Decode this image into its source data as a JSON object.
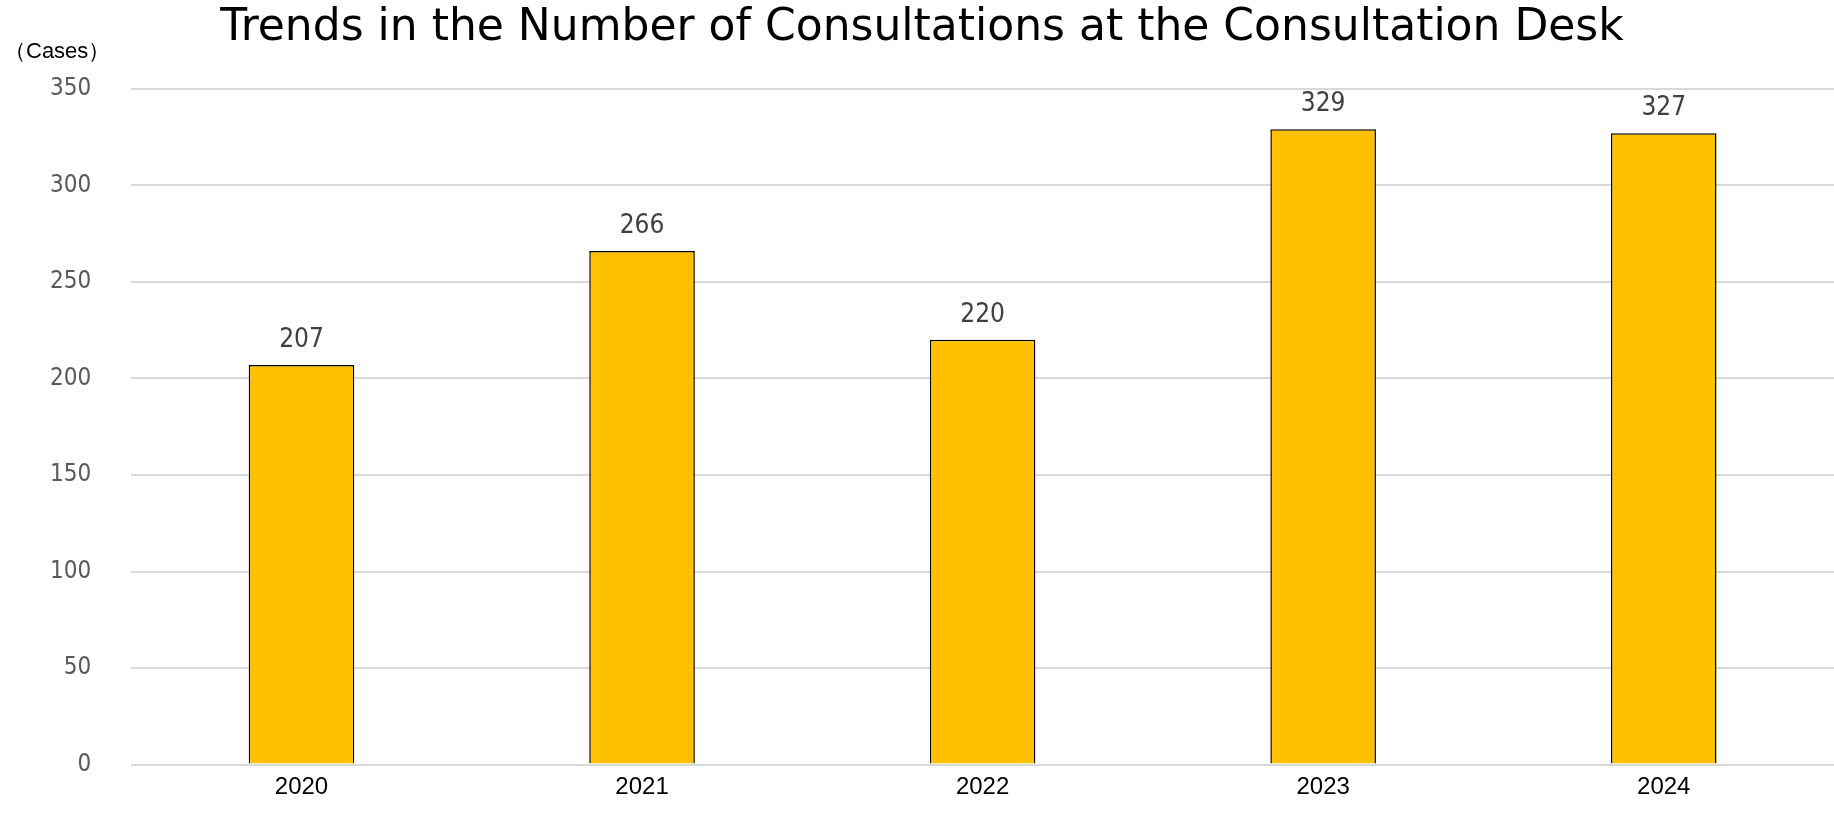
{
  "chart_data": {
    "type": "bar",
    "title": "Trends in the Number of Consultations at the Consultation Desk",
    "ylabel": "（Cases）",
    "categories": [
      "2020",
      "2021",
      "2022",
      "2023",
      "2024"
    ],
    "values": [
      207,
      266,
      220,
      329,
      327
    ],
    "color": "#ffc000",
    "ylim": [
      0,
      350
    ],
    "yticks": [
      0,
      50,
      100,
      150,
      200,
      250,
      300,
      350
    ],
    "grid": "y",
    "legend": false,
    "data_labels": true
  }
}
